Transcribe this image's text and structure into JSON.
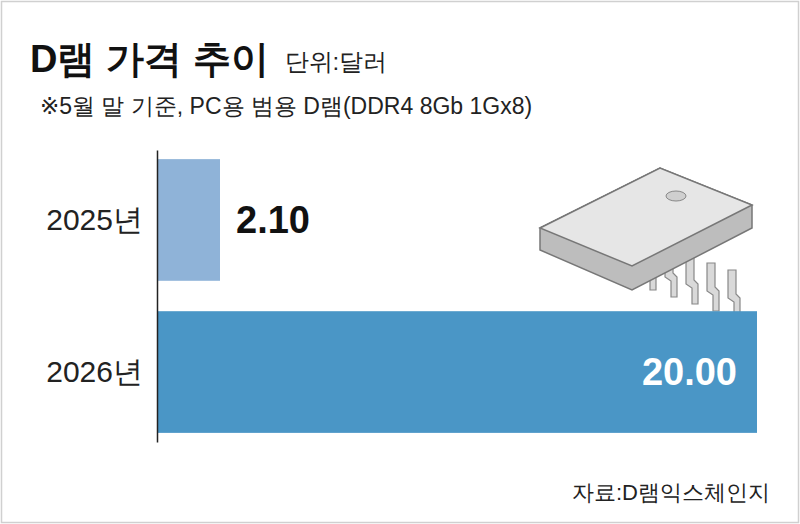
{
  "chart_data": {
    "type": "bar",
    "orientation": "horizontal",
    "title": "D램 가격 추이",
    "subtitle": "※5월 말 기준, PC용 범용 D램(DDR4 8Gb 1Gx8)",
    "unit": "단위:달러",
    "source": "자료:D램익스체인지",
    "categories": [
      "2025년",
      "2026년"
    ],
    "values": [
      2.1,
      20.0
    ],
    "value_labels": [
      "2.10",
      "20.00"
    ],
    "colors": [
      "#8fb3d8",
      "#4a96c6"
    ],
    "xlim": [
      0,
      20
    ],
    "xticks": [],
    "tick_labels": "y",
    "grid": false,
    "data_labels": true
  }
}
